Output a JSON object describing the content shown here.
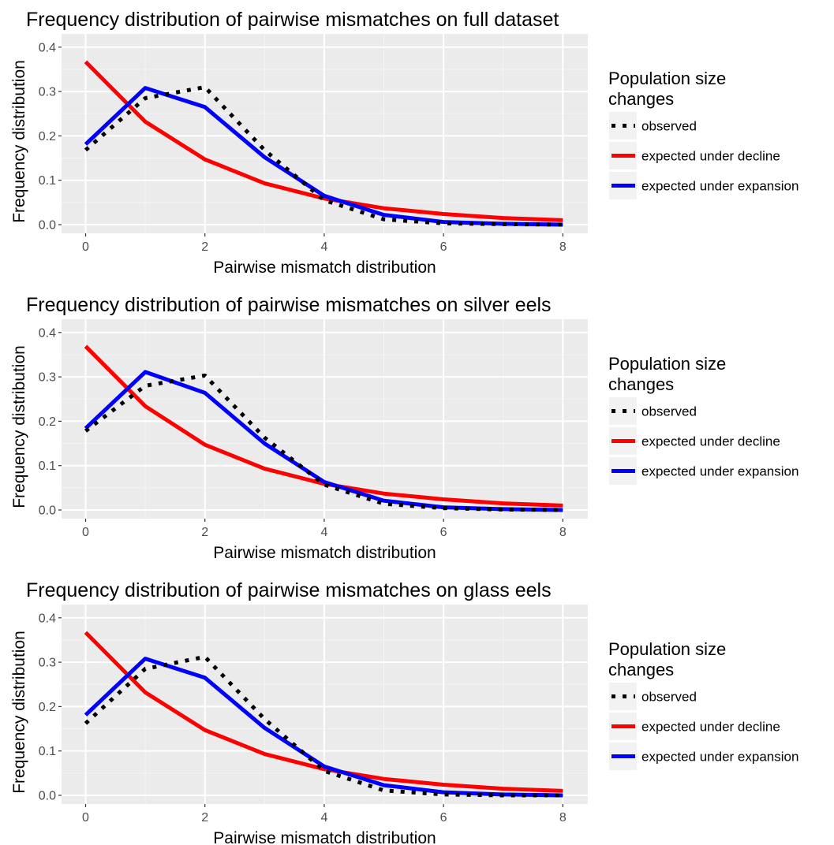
{
  "chart_data": [
    {
      "type": "line",
      "title": "Frequency distribution of pairwise mismatches on full dataset",
      "xlabel": "Pairwise mismatch distribution",
      "ylabel": "Frequency distribution",
      "xlim": [
        0,
        8
      ],
      "ylim": [
        0,
        0.4
      ],
      "xticks": [
        "0",
        "2",
        "4",
        "6",
        "8"
      ],
      "yticks": [
        "0.0",
        "0.1",
        "0.2",
        "0.3",
        "0.4"
      ],
      "grid": true,
      "legend_position": "right",
      "legend_title": "Population size changes",
      "x": [
        0,
        1,
        2,
        3,
        4,
        5,
        6,
        7,
        8
      ],
      "series": [
        {
          "name": "observed",
          "color": "#000000",
          "style": "dotted",
          "values": [
            0.168,
            0.285,
            0.31,
            0.168,
            0.055,
            0.012,
            0.003,
            0.001,
            0.0
          ]
        },
        {
          "name": "expected under decline",
          "color": "#ff0000",
          "style": "solid",
          "values": [
            0.367,
            0.232,
            0.147,
            0.093,
            0.059,
            0.037,
            0.024,
            0.015,
            0.01
          ]
        },
        {
          "name": "expected under expansion",
          "color": "#0000ff",
          "style": "solid",
          "values": [
            0.181,
            0.308,
            0.265,
            0.152,
            0.065,
            0.022,
            0.006,
            0.002,
            0.0
          ]
        }
      ]
    },
    {
      "type": "line",
      "title": "Frequency distribution of pairwise mismatches on silver eels",
      "xlabel": "Pairwise mismatch distribution",
      "ylabel": "Frequency distribution",
      "xlim": [
        0,
        8
      ],
      "ylim": [
        0,
        0.4
      ],
      "xticks": [
        "0",
        "2",
        "4",
        "6",
        "8"
      ],
      "yticks": [
        "0.0",
        "0.1",
        "0.2",
        "0.3",
        "0.4"
      ],
      "grid": true,
      "legend_position": "right",
      "legend_title": "Population size changes",
      "x": [
        0,
        1,
        2,
        3,
        4,
        5,
        6,
        7,
        8
      ],
      "series": [
        {
          "name": "observed",
          "color": "#000000",
          "style": "dotted",
          "values": [
            0.178,
            0.28,
            0.303,
            0.163,
            0.057,
            0.014,
            0.004,
            0.001,
            0.0
          ]
        },
        {
          "name": "expected under decline",
          "color": "#ff0000",
          "style": "solid",
          "values": [
            0.369,
            0.234,
            0.147,
            0.093,
            0.059,
            0.037,
            0.024,
            0.015,
            0.01
          ]
        },
        {
          "name": "expected under expansion",
          "color": "#0000ff",
          "style": "solid",
          "values": [
            0.184,
            0.311,
            0.264,
            0.15,
            0.063,
            0.021,
            0.006,
            0.002,
            0.0
          ]
        }
      ]
    },
    {
      "type": "line",
      "title": "Frequency distribution of pairwise mismatches on glass eels",
      "xlabel": "Pairwise mismatch distribution",
      "ylabel": "Frequency distribution",
      "xlim": [
        0,
        8
      ],
      "ylim": [
        0,
        0.4
      ],
      "xticks": [
        "0",
        "2",
        "4",
        "6",
        "8"
      ],
      "yticks": [
        "0.0",
        "0.1",
        "0.2",
        "0.3",
        "0.4"
      ],
      "grid": true,
      "legend_position": "right",
      "legend_title": "Population size changes",
      "x": [
        0,
        1,
        2,
        3,
        4,
        5,
        6,
        7,
        8
      ],
      "series": [
        {
          "name": "observed",
          "color": "#000000",
          "style": "dotted",
          "values": [
            0.162,
            0.285,
            0.312,
            0.172,
            0.055,
            0.011,
            0.002,
            0.0,
            0.0
          ]
        },
        {
          "name": "expected under decline",
          "color": "#ff0000",
          "style": "solid",
          "values": [
            0.367,
            0.232,
            0.147,
            0.093,
            0.059,
            0.037,
            0.024,
            0.015,
            0.01
          ]
        },
        {
          "name": "expected under expansion",
          "color": "#0000ff",
          "style": "solid",
          "values": [
            0.181,
            0.308,
            0.265,
            0.152,
            0.065,
            0.023,
            0.007,
            0.002,
            0.0
          ]
        }
      ]
    }
  ]
}
